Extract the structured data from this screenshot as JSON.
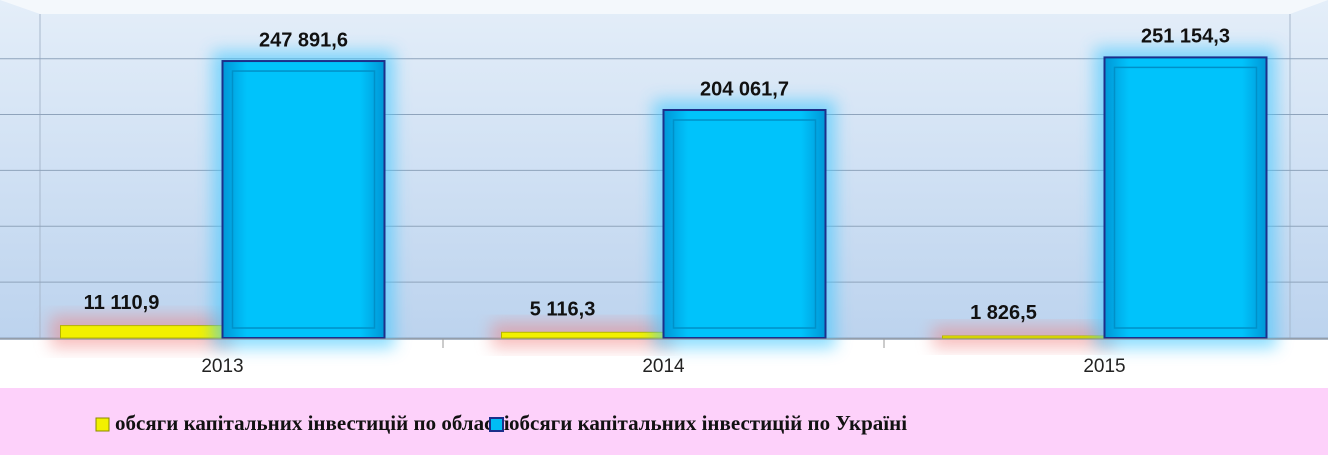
{
  "chart_data": {
    "type": "bar",
    "categories": [
      "2013",
      "2014",
      "2015"
    ],
    "series": [
      {
        "name": "обсяги капітальних інвестицій по області",
        "color": "#f2f000",
        "values": [
          11110.9,
          5116.3,
          1826.5
        ],
        "value_labels": [
          "11 110,9",
          "5 116,3",
          "1 826,5"
        ]
      },
      {
        "name": "обсяги капітальних інвестицій по Україні",
        "color": "#00bdf5",
        "values": [
          247891.6,
          204061.7,
          251154.3
        ],
        "value_labels": [
          "247 891,6",
          "204 061,7",
          "251 154,3"
        ]
      }
    ],
    "ylim": [
      0,
      290000
    ],
    "yticks": [
      0,
      50000,
      100000,
      150000,
      200000,
      250000
    ],
    "grid": true
  }
}
